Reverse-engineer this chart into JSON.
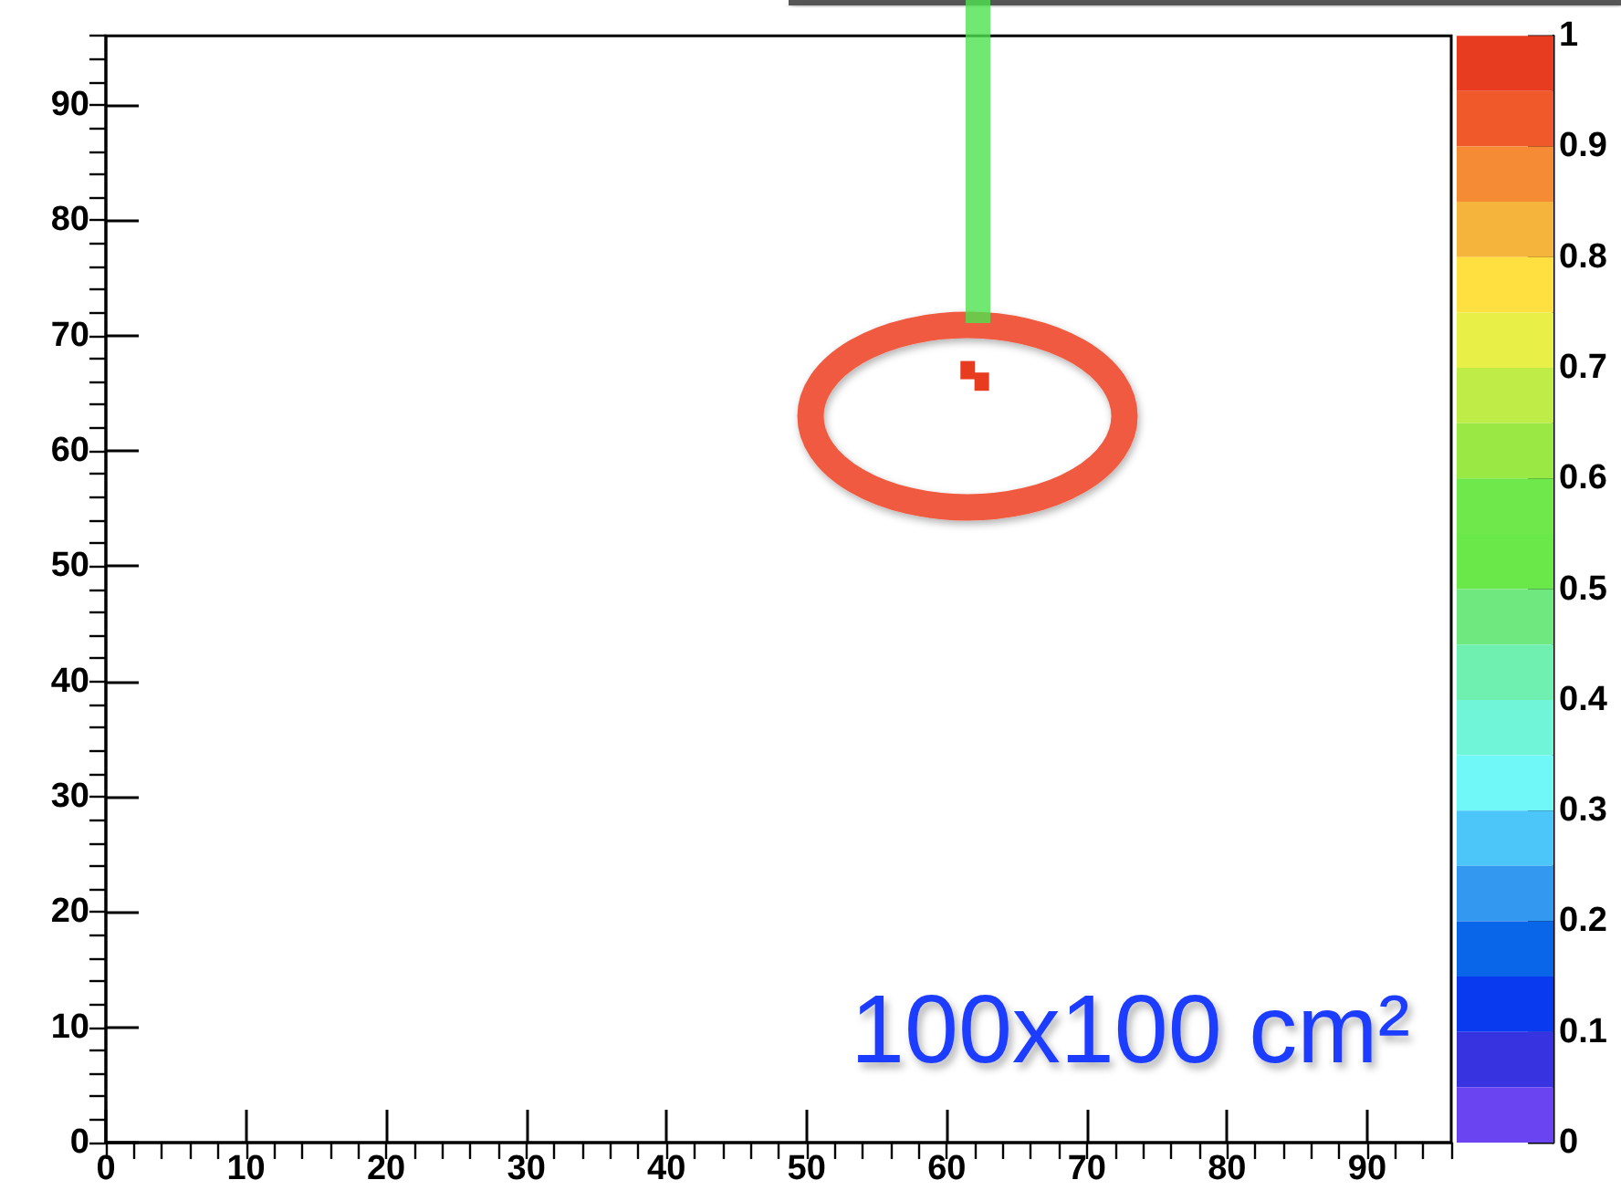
{
  "chart_data": {
    "type": "scatter",
    "x": [
      61.5,
      62.5
    ],
    "values": [
      67,
      66
    ],
    "cvalues": [
      1,
      1
    ],
    "marker": "square",
    "xlim": [
      0,
      96
    ],
    "ylim": [
      0,
      96
    ],
    "xticks": [
      0,
      10,
      20,
      30,
      40,
      50,
      60,
      70,
      80,
      90
    ],
    "yticks": [
      0,
      10,
      20,
      30,
      40,
      50,
      60,
      70,
      80,
      90
    ],
    "clim": [
      0,
      1
    ],
    "cticks": [
      0,
      0.1,
      0.2,
      0.3,
      0.4,
      0.5,
      0.6,
      0.7,
      0.8,
      0.9,
      1
    ],
    "annotations": [
      "100x100 cm²"
    ]
  }
}
